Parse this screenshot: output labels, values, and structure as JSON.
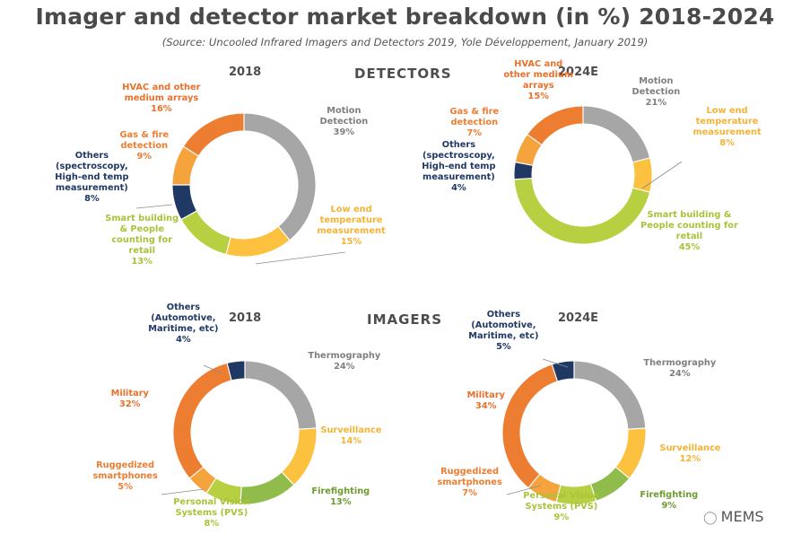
{
  "title": "Imager and detector market breakdown (in %) 2018-2024",
  "subtitle": "(Source: Uncooled Infrared Imagers and Detectors 2019, Yole Développement, January 2019)",
  "sections": {
    "detectors": "DETECTORS",
    "imagers": "IMAGERS"
  },
  "watermark": {
    "text": "MEMS",
    "icon": "wechat-icon"
  },
  "chart_data": [
    {
      "type": "pie",
      "donut": true,
      "section": "DETECTORS",
      "title": "2018",
      "slices": [
        {
          "lines": [
            "Motion",
            "Detection",
            "39%"
          ],
          "value": 39,
          "color": "#a6a6a6",
          "text_color": "#7f7f7f"
        },
        {
          "lines": [
            "Low end",
            "temperature",
            "measurement",
            "15%"
          ],
          "value": 15,
          "color": "#fcc13e",
          "text_color": "#f5b335"
        },
        {
          "lines": [
            "Smart building",
            "& People",
            "counting for",
            "retail",
            "13%"
          ],
          "value": 13,
          "color": "#b7d041",
          "text_color": "#a8c33a"
        },
        {
          "lines": [
            "Others",
            "(spectroscopy,",
            "High-end temp",
            "measurement)",
            "8%"
          ],
          "value": 8,
          "color": "#1f3864",
          "text_color": "#1f3864"
        },
        {
          "lines": [
            "Gas & fire",
            "detection",
            "9%"
          ],
          "value": 9,
          "color": "#f5a33c",
          "text_color": "#ed7d31"
        },
        {
          "lines": [
            "HVAC and other",
            "medium arrays",
            "16%"
          ],
          "value": 16,
          "color": "#ed7d31",
          "text_color": "#e8702a"
        }
      ]
    },
    {
      "type": "pie",
      "donut": true,
      "section": "DETECTORS",
      "title": "2024E",
      "slices": [
        {
          "lines": [
            "Motion",
            "Detection",
            "21%"
          ],
          "value": 21,
          "color": "#a6a6a6",
          "text_color": "#7f7f7f"
        },
        {
          "lines": [
            "Low end",
            "temperature",
            "measurement",
            "8%"
          ],
          "value": 8,
          "color": "#fcc13e",
          "text_color": "#f5b335"
        },
        {
          "lines": [
            "Smart building &",
            "People counting for",
            "retail",
            "45%"
          ],
          "value": 45,
          "color": "#b7d041",
          "text_color": "#a8c33a"
        },
        {
          "lines": [
            "Others",
            "(spectroscopy,",
            "High-end temp",
            "measurement)",
            "4%"
          ],
          "value": 4,
          "color": "#1f3864",
          "text_color": "#1f3864"
        },
        {
          "lines": [
            "Gas & fire",
            "detection",
            "7%"
          ],
          "value": 7,
          "color": "#f5a33c",
          "text_color": "#ed7d31"
        },
        {
          "lines": [
            "HVAC and",
            "other medium",
            "arrays",
            "15%"
          ],
          "value": 15,
          "color": "#ed7d31",
          "text_color": "#e8702a"
        }
      ]
    },
    {
      "type": "pie",
      "donut": true,
      "section": "IMAGERS",
      "title": "2018",
      "slices": [
        {
          "lines": [
            "Thermography",
            "24%"
          ],
          "value": 24,
          "color": "#a6a6a6",
          "text_color": "#7f7f7f"
        },
        {
          "lines": [
            "Surveillance",
            "14%"
          ],
          "value": 14,
          "color": "#fcc13e",
          "text_color": "#f5b335"
        },
        {
          "lines": [
            "Firefighting",
            "13%"
          ],
          "value": 13,
          "color": "#8fbc4a",
          "text_color": "#6e9b31"
        },
        {
          "lines": [
            "Personal Vision",
            "Systems (PVS)",
            "8%"
          ],
          "value": 8,
          "color": "#b7d041",
          "text_color": "#a8c33a"
        },
        {
          "lines": [
            "Ruggedized",
            "smartphones",
            "5%"
          ],
          "value": 5,
          "color": "#f5a33c",
          "text_color": "#ed7d31"
        },
        {
          "lines": [
            "Military",
            "32%"
          ],
          "value": 32,
          "color": "#ed7d31",
          "text_color": "#e8702a"
        },
        {
          "lines": [
            "Others",
            "(Automotive,",
            "Maritime, etc)",
            "4%"
          ],
          "value": 4,
          "color": "#1f3864",
          "text_color": "#1f3864"
        }
      ]
    },
    {
      "type": "pie",
      "donut": true,
      "section": "IMAGERS",
      "title": "2024E",
      "slices": [
        {
          "lines": [
            "Thermography",
            "24%"
          ],
          "value": 24,
          "color": "#a6a6a6",
          "text_color": "#7f7f7f"
        },
        {
          "lines": [
            "Surveillance",
            "12%"
          ],
          "value": 12,
          "color": "#fcc13e",
          "text_color": "#f5b335"
        },
        {
          "lines": [
            "Firefighting",
            "9%"
          ],
          "value": 9,
          "color": "#8fbc4a",
          "text_color": "#6e9b31"
        },
        {
          "lines": [
            "Personal Vision",
            "Systems (PVS)",
            "9%"
          ],
          "value": 9,
          "color": "#b7d041",
          "text_color": "#a8c33a"
        },
        {
          "lines": [
            "Ruggedized",
            "smartphones",
            "7%"
          ],
          "value": 7,
          "color": "#f5a33c",
          "text_color": "#ed7d31"
        },
        {
          "lines": [
            "Military",
            "34%"
          ],
          "value": 34,
          "color": "#ed7d31",
          "text_color": "#e8702a"
        },
        {
          "lines": [
            "Others",
            "(Automotive,",
            "Maritime, etc)",
            "5%"
          ],
          "value": 5,
          "color": "#1f3864",
          "text_color": "#1f3864"
        }
      ]
    }
  ]
}
